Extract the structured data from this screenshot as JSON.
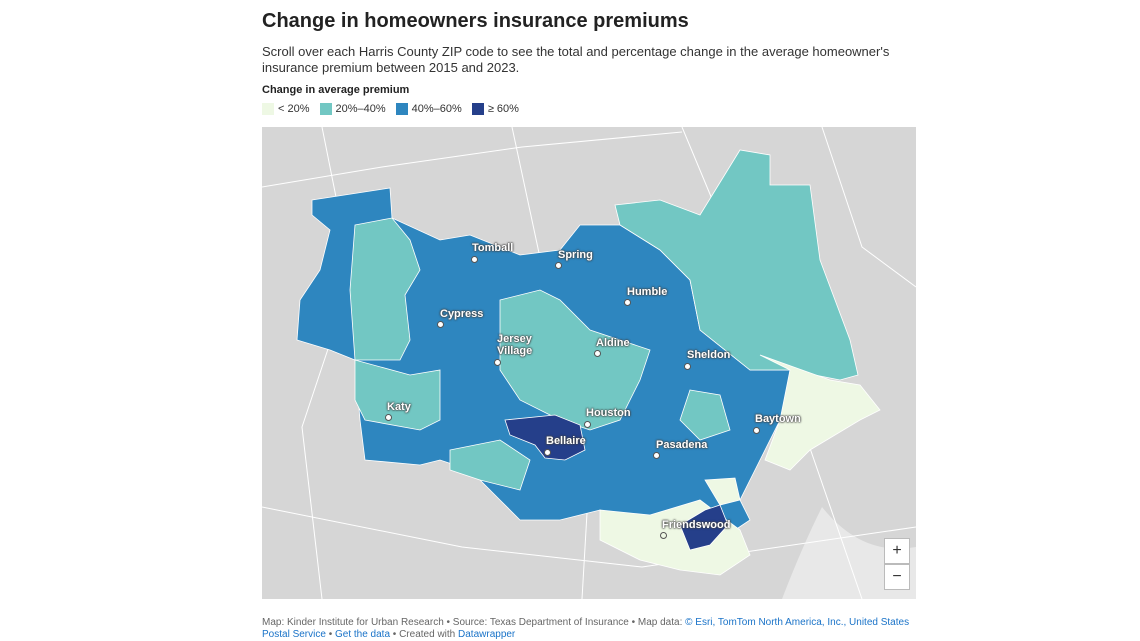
{
  "header": {
    "title": "Change in homeowners insurance premiums",
    "description": "Scroll over each Harris County ZIP code to see the total and percentage change in the average homeowner's insurance premium between 2015 and 2023."
  },
  "legend": {
    "title": "Change in average premium",
    "items": [
      {
        "label": "< 20%",
        "color": "#eef8e4"
      },
      {
        "label": "20%–40%",
        "color": "#72c7c3"
      },
      {
        "label": "40%–60%",
        "color": "#2e86bf"
      },
      {
        "label": "≥ 60%",
        "color": "#253f8a"
      }
    ]
  },
  "map": {
    "places": [
      "Tomball",
      "Spring",
      "Humble",
      "Cypress",
      "Jersey Village",
      "Aldine",
      "Sheldon",
      "Houston",
      "Baytown",
      "Katy",
      "Bellaire",
      "Pasadena",
      "Friendswood"
    ],
    "zoom": [
      "+",
      "−"
    ]
  },
  "footer": {
    "segments": [
      {
        "text": "Map: Kinder Institute for Urban Research • Source: Texas Department of Insurance • Map data: ",
        "link": false
      },
      {
        "text": "© Esri, TomTom North America, Inc., United States Postal Service",
        "link": true
      },
      {
        "text": " • ",
        "link": false
      },
      {
        "text": "Get the data",
        "link": true
      },
      {
        "text": " • Created with ",
        "link": false
      },
      {
        "text": "Datawrapper",
        "link": true
      }
    ]
  }
}
